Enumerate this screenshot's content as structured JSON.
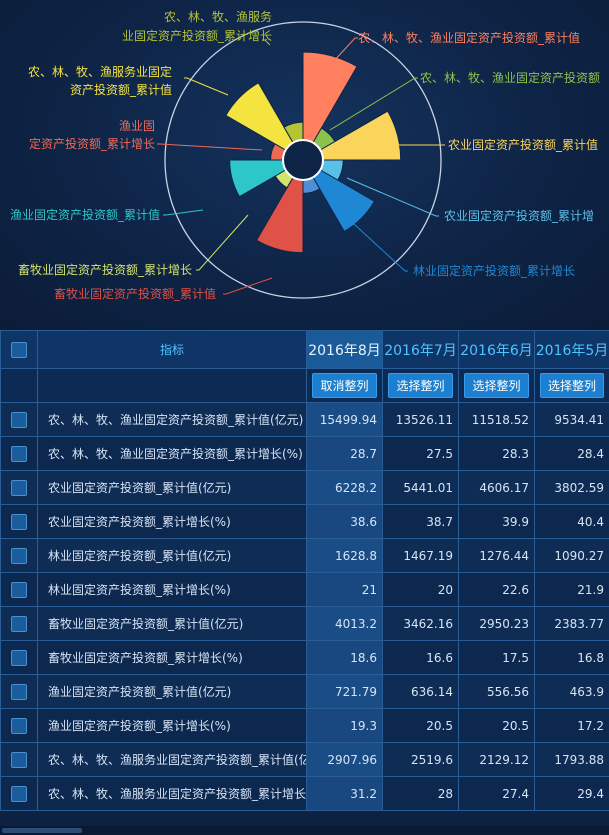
{
  "chart_data": {
    "type": "pie",
    "subtype": "nightingale-rose",
    "slices": [
      {
        "label": "农、林、牧、渔业固定资产投资额_累计值",
        "value": 15499.94,
        "color": "#ff7f5e"
      },
      {
        "label": "农、林、牧、渔业固定资产投资额_累计增长",
        "value": 28.7,
        "color": "#8bc34a"
      },
      {
        "label": "农业固定资产投资额_累计值",
        "value": 6228.2,
        "color": "#f9d55b"
      },
      {
        "label": "农业固定资产投资额_累计增长",
        "value": 38.6,
        "color": "#5bc0e8"
      },
      {
        "label": "林业固定资产投资额_累计值",
        "value": 1628.8,
        "color": "#1e88d4"
      },
      {
        "label": "林业固定资产投资额_累计增长",
        "value": 21,
        "color": "#4f8fd8"
      },
      {
        "label": "畜牧业固定资产投资额_累计值",
        "value": 4013.2,
        "color": "#e05147"
      },
      {
        "label": "畜牧业固定资产投资额_累计增长",
        "value": 18.6,
        "color": "#d4e36b"
      },
      {
        "label": "渔业固定资产投资额_累计值",
        "value": 721.79,
        "color": "#2ec7c9"
      },
      {
        "label": "渔业固定资产投资额_累计增长",
        "value": 19.3,
        "color": "#ef6a55"
      },
      {
        "label": "农、林、牧、渔服务业固定资产投资额_累计值",
        "value": 2907.96,
        "color": "#f5e340"
      },
      {
        "label": "农、林、牧、渔服务业固定资产投资额_累计增长",
        "value": 31.2,
        "color": "#b5c334"
      }
    ],
    "callout_labels": [
      {
        "lines": [
          "农、林、牧、渔业固定资产投资额_累计值"
        ],
        "color": "#ff7f5e"
      },
      {
        "lines": [
          "农、林、牧、渔业固定资产投资额"
        ],
        "color": "#8bc34a"
      },
      {
        "lines": [
          "农业固定资产投资额_累计值"
        ],
        "color": "#f9d55b"
      },
      {
        "lines": [
          "农业固定资产投资额_累计增"
        ],
        "color": "#5bc0e8"
      },
      {
        "lines": [
          "林业固定资产投资额_累计增长"
        ],
        "color": "#1e88d4"
      },
      {
        "lines": [
          "畜牧业固定资产投资额_累计值"
        ],
        "color": "#e05147"
      },
      {
        "lines": [
          "畜牧业固定资产投资额_累计增长"
        ],
        "color": "#d4e36b"
      },
      {
        "lines": [
          "渔业固定资产投资额_累计值"
        ],
        "color": "#2ec7c9"
      },
      {
        "lines": [
          "渔业固",
          "定资产投资额_累计增长"
        ],
        "color": "#ef6a55"
      },
      {
        "lines": [
          "农、林、牧、渔服务业固定",
          "资产投资额_累计值"
        ],
        "color": "#f5e340"
      },
      {
        "lines": [
          "农、林、牧、渔服务",
          "业固定资产投资额_累计增长"
        ],
        "color": "#b5c334"
      }
    ]
  },
  "table": {
    "header": {
      "indicator": "指标",
      "periods": [
        "2016年8月",
        "2016年7月",
        "2016年6月",
        "2016年5月"
      ],
      "sort_buttons": [
        "取消整列",
        "选择整列",
        "选择整列",
        "选择整列"
      ]
    },
    "rows": [
      {
        "label": "农、林、牧、渔业固定资产投资额_累计值(亿元)",
        "values": [
          "15499.94",
          "13526.11",
          "11518.52",
          "9534.41"
        ]
      },
      {
        "label": "农、林、牧、渔业固定资产投资额_累计增长(%)",
        "values": [
          "28.7",
          "27.5",
          "28.3",
          "28.4"
        ]
      },
      {
        "label": "农业固定资产投资额_累计值(亿元)",
        "values": [
          "6228.2",
          "5441.01",
          "4606.17",
          "3802.59"
        ]
      },
      {
        "label": "农业固定资产投资额_累计增长(%)",
        "values": [
          "38.6",
          "38.7",
          "39.9",
          "40.4"
        ]
      },
      {
        "label": "林业固定资产投资额_累计值(亿元)",
        "values": [
          "1628.8",
          "1467.19",
          "1276.44",
          "1090.27"
        ]
      },
      {
        "label": "林业固定资产投资额_累计增长(%)",
        "values": [
          "21",
          "20",
          "22.6",
          "21.9"
        ]
      },
      {
        "label": "畜牧业固定资产投资额_累计值(亿元)",
        "values": [
          "4013.2",
          "3462.16",
          "2950.23",
          "2383.77"
        ]
      },
      {
        "label": "畜牧业固定资产投资额_累计增长(%)",
        "values": [
          "18.6",
          "16.6",
          "17.5",
          "16.8"
        ]
      },
      {
        "label": "渔业固定资产投资额_累计值(亿元)",
        "values": [
          "721.79",
          "636.14",
          "556.56",
          "463.9"
        ]
      },
      {
        "label": "渔业固定资产投资额_累计增长(%)",
        "values": [
          "19.3",
          "20.5",
          "20.5",
          "17.2"
        ]
      },
      {
        "label": "农、林、牧、渔服务业固定资产投资额_累计值(亿元)",
        "values": [
          "2907.96",
          "2519.6",
          "2129.12",
          "1793.88"
        ]
      },
      {
        "label": "农、林、牧、渔服务业固定资产投资额_累计增长(%)",
        "values": [
          "31.2",
          "28",
          "27.4",
          "29.4"
        ]
      }
    ]
  },
  "colors": {
    "accent": "#1d7fd0",
    "background": "#0d2142",
    "header_text": "#4fc3ff"
  }
}
